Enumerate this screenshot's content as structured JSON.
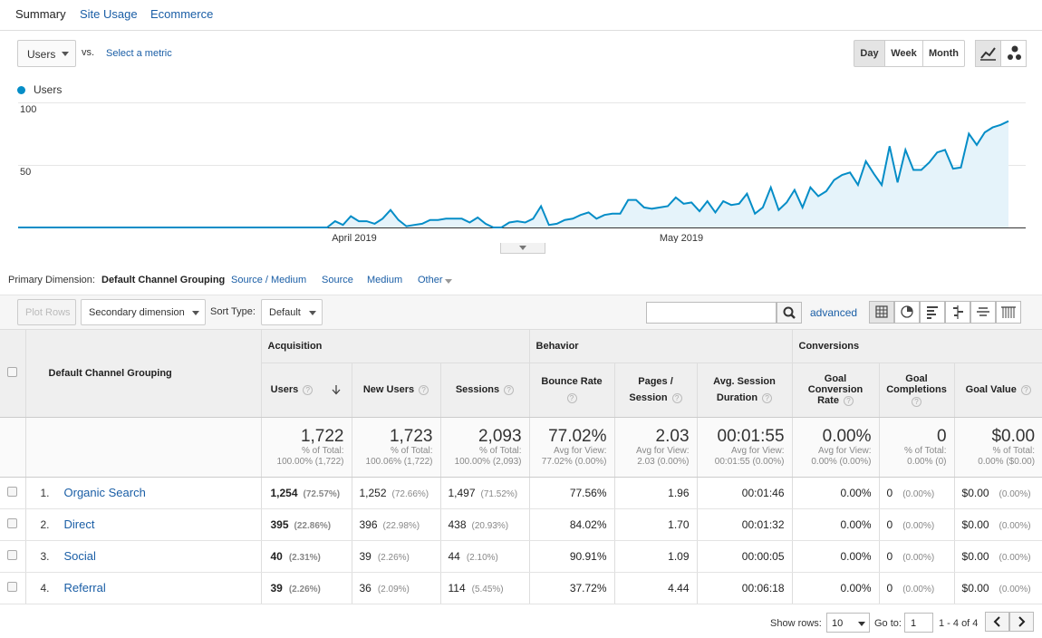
{
  "tabs": [
    "Summary",
    "Site Usage",
    "Ecommerce"
  ],
  "metric": {
    "selected": "Users",
    "vs": "vs.",
    "select_metric": "Select a metric"
  },
  "granularity": [
    "Day",
    "Week",
    "Month"
  ],
  "chart_data": {
    "type": "area",
    "series": [
      {
        "name": "Users",
        "color": "#058dc7",
        "values": [
          0,
          0,
          0,
          0,
          0,
          0,
          0,
          0,
          0,
          0,
          0,
          0,
          0,
          0,
          0,
          0,
          0,
          0,
          0,
          0,
          0,
          0,
          0,
          0,
          0,
          0,
          0,
          0,
          0,
          0,
          0,
          0,
          0,
          0,
          0,
          0,
          0,
          0,
          0,
          0,
          5,
          2,
          9,
          5,
          5,
          3,
          7,
          14,
          6,
          1,
          2,
          3,
          6,
          6,
          7,
          7,
          7,
          4,
          8,
          3,
          0,
          0,
          4,
          5,
          4,
          7,
          17,
          2,
          3,
          6,
          7,
          10,
          12,
          7,
          10,
          11,
          11,
          22,
          22,
          16,
          15,
          16,
          17,
          24,
          19,
          20,
          13,
          21,
          12,
          21,
          18,
          19,
          27,
          11,
          16,
          32,
          14,
          20,
          30,
          16,
          32,
          25,
          29,
          38,
          42,
          44,
          34,
          53,
          43,
          34,
          65,
          36,
          62,
          46,
          46,
          52,
          60,
          62,
          47,
          48,
          75,
          66,
          76,
          80,
          82,
          85
        ]
      }
    ],
    "x_labels": [
      "April 2019",
      "May 2019"
    ],
    "y_ticks": [
      "100",
      "50"
    ],
    "ylim": [
      0,
      100
    ]
  },
  "primary_dimension": {
    "label": "Primary Dimension:",
    "items": [
      "Default Channel Grouping",
      "Source / Medium",
      "Source",
      "Medium",
      "Other"
    ]
  },
  "toolbar": {
    "plot_rows": "Plot Rows",
    "secondary": "Secondary dimension",
    "sort_type_label": "Sort Type:",
    "sort_value": "Default",
    "advanced": "advanced"
  },
  "table": {
    "dimension_header": "Default Channel Grouping",
    "groups": [
      "Acquisition",
      "Behavior",
      "Conversions"
    ],
    "columns": [
      "Users",
      "New Users",
      "Sessions",
      "Bounce Rate",
      "Pages /",
      "Session",
      "Avg. Session",
      "Duration",
      "Goal",
      "Conversion",
      "Rate",
      "Goal",
      "Completions",
      "Goal Value"
    ],
    "totals": [
      {
        "value": "1,722",
        "l1": "% of Total:",
        "l2": "100.00% (1,722)"
      },
      {
        "value": "1,723",
        "l1": "% of Total:",
        "l2": "100.06% (1,722)"
      },
      {
        "value": "2,093",
        "l1": "% of Total:",
        "l2": "100.00% (2,093)"
      },
      {
        "value": "77.02%",
        "l1": "Avg for View:",
        "l2": "77.02% (0.00%)"
      },
      {
        "value": "2.03",
        "l1": "Avg for View:",
        "l2": "2.03 (0.00%)"
      },
      {
        "value": "00:01:55",
        "l1": "Avg for View:",
        "l2": "00:01:55 (0.00%)"
      },
      {
        "value": "0.00%",
        "l1": "Avg for View:",
        "l2": "0.00% (0.00%)"
      },
      {
        "value": "0",
        "l1": "% of Total:",
        "l2": "0.00% (0)"
      },
      {
        "value": "$0.00",
        "l1": "% of Total:",
        "l2": "0.00% ($0.00)"
      }
    ],
    "rows": [
      {
        "idx": "1.",
        "name": "Organic Search",
        "users": "1,254",
        "users_pct": "(72.57%)",
        "new_users": "1,252",
        "new_users_pct": "(72.66%)",
        "sessions": "1,497",
        "sessions_pct": "(71.52%)",
        "bounce": "77.56%",
        "pages": "1.96",
        "duration": "00:01:46",
        "conv": "0.00%",
        "comp": "0",
        "comp_pct": "(0.00%)",
        "value": "$0.00",
        "value_pct": "(0.00%)"
      },
      {
        "idx": "2.",
        "name": "Direct",
        "users": "395",
        "users_pct": "(22.86%)",
        "new_users": "396",
        "new_users_pct": "(22.98%)",
        "sessions": "438",
        "sessions_pct": "(20.93%)",
        "bounce": "84.02%",
        "pages": "1.70",
        "duration": "00:01:32",
        "conv": "0.00%",
        "comp": "0",
        "comp_pct": "(0.00%)",
        "value": "$0.00",
        "value_pct": "(0.00%)"
      },
      {
        "idx": "3.",
        "name": "Social",
        "users": "40",
        "users_pct": "(2.31%)",
        "new_users": "39",
        "new_users_pct": "(2.26%)",
        "sessions": "44",
        "sessions_pct": "(2.10%)",
        "bounce": "90.91%",
        "pages": "1.09",
        "duration": "00:00:05",
        "conv": "0.00%",
        "comp": "0",
        "comp_pct": "(0.00%)",
        "value": "$0.00",
        "value_pct": "(0.00%)"
      },
      {
        "idx": "4.",
        "name": "Referral",
        "users": "39",
        "users_pct": "(2.26%)",
        "new_users": "36",
        "new_users_pct": "(2.09%)",
        "sessions": "114",
        "sessions_pct": "(5.45%)",
        "bounce": "37.72%",
        "pages": "4.44",
        "duration": "00:06:18",
        "conv": "0.00%",
        "comp": "0",
        "comp_pct": "(0.00%)",
        "value": "$0.00",
        "value_pct": "(0.00%)"
      }
    ]
  },
  "footer": {
    "show_rows_label": "Show rows:",
    "show_rows_value": "10",
    "goto_label": "Go to:",
    "goto_value": "1",
    "range": "1 - 4 of 4"
  },
  "colors": {
    "accent": "#058dc7",
    "link": "#1a5ea6"
  }
}
